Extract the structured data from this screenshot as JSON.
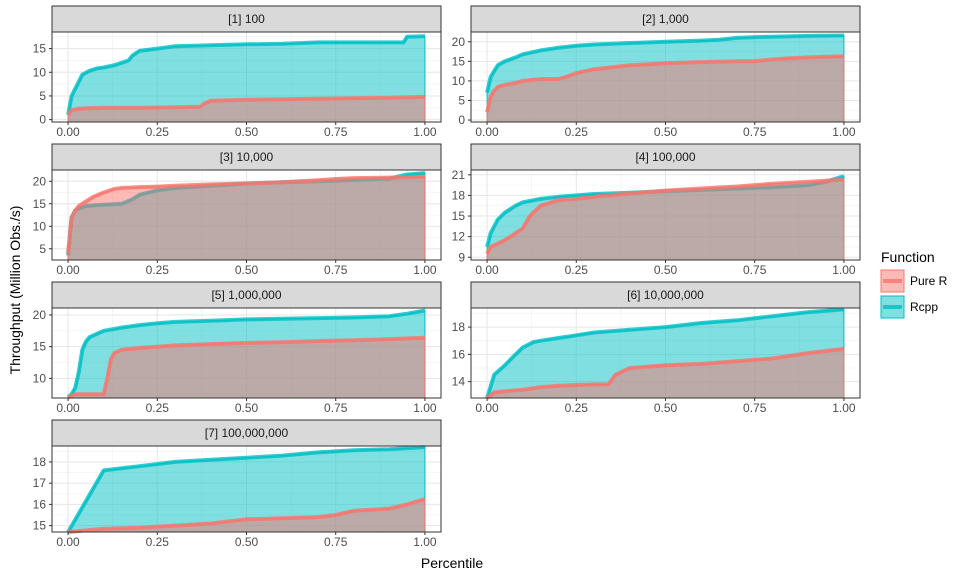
{
  "chart_data": {
    "type": "area",
    "xlabel": "Percentile",
    "ylabel": "Throughput (Million Obs./s)",
    "x_ticks": [
      "0.00",
      "0.25",
      "0.50",
      "0.75",
      "1.00"
    ],
    "grid": true,
    "legend": {
      "title": "Function",
      "position": "right",
      "entries": [
        {
          "name": "Pure R",
          "color": "#F8766D"
        },
        {
          "name": "Rcpp",
          "color": "#00BFC4"
        }
      ]
    },
    "panels": [
      {
        "title": "[1] 100",
        "ylim": [
          -0.5,
          18.5
        ],
        "y_ticks": [
          "0",
          "5",
          "10",
          "15"
        ],
        "series": [
          {
            "name": "Pure R",
            "x": [
              0,
              0.01,
              0.03,
              0.05,
              0.1,
              0.2,
              0.3,
              0.37,
              0.38,
              0.4,
              0.5,
              0.6,
              0.7,
              0.8,
              0.9,
              1.0
            ],
            "y": [
              1.0,
              2.0,
              2.3,
              2.4,
              2.5,
              2.5,
              2.6,
              2.7,
              3.3,
              4.0,
              4.2,
              4.3,
              4.4,
              4.5,
              4.6,
              4.8
            ]
          },
          {
            "name": "Rcpp",
            "x": [
              0,
              0.01,
              0.02,
              0.03,
              0.04,
              0.06,
              0.08,
              0.1,
              0.13,
              0.15,
              0.17,
              0.18,
              0.2,
              0.25,
              0.3,
              0.4,
              0.5,
              0.6,
              0.7,
              0.8,
              0.9,
              0.94,
              0.95,
              1.0
            ],
            "y": [
              1.0,
              5.0,
              6.5,
              8.0,
              9.5,
              10.3,
              10.8,
              11.0,
              11.5,
              12.0,
              12.5,
              13.5,
              14.5,
              15.0,
              15.5,
              15.7,
              15.9,
              16.0,
              16.3,
              16.3,
              16.3,
              16.3,
              17.5,
              17.6
            ]
          }
        ]
      },
      {
        "title": "[2] 1,000",
        "ylim": [
          -0.5,
          22.5
        ],
        "y_ticks": [
          "0",
          "5",
          "10",
          "15",
          "20"
        ],
        "series": [
          {
            "name": "Pure R",
            "x": [
              0,
              0.01,
              0.02,
              0.03,
              0.05,
              0.08,
              0.1,
              0.15,
              0.2,
              0.22,
              0.25,
              0.3,
              0.4,
              0.5,
              0.6,
              0.7,
              0.75,
              0.8,
              0.85,
              0.9,
              0.95,
              1.0
            ],
            "y": [
              2.0,
              6.0,
              7.5,
              8.5,
              9.0,
              9.5,
              10.0,
              10.5,
              10.5,
              11.0,
              12.0,
              13.0,
              14.0,
              14.5,
              14.8,
              15.0,
              15.0,
              15.5,
              15.8,
              16.0,
              16.2,
              16.3
            ]
          },
          {
            "name": "Rcpp",
            "x": [
              0,
              0.01,
              0.02,
              0.03,
              0.05,
              0.08,
              0.1,
              0.15,
              0.2,
              0.25,
              0.3,
              0.4,
              0.5,
              0.6,
              0.65,
              0.7,
              0.75,
              0.8,
              0.9,
              1.0
            ],
            "y": [
              7.0,
              11.0,
              12.5,
              14.0,
              15.0,
              16.0,
              16.8,
              17.8,
              18.5,
              19.0,
              19.3,
              19.7,
              20.0,
              20.3,
              20.5,
              21.0,
              21.2,
              21.3,
              21.5,
              21.6
            ]
          }
        ]
      },
      {
        "title": "[3] 10,000",
        "ylim": [
          2.5,
          22.5
        ],
        "y_ticks": [
          "5",
          "10",
          "15",
          "20"
        ],
        "series": [
          {
            "name": "Pure R",
            "x": [
              0,
              0.01,
              0.02,
              0.03,
              0.05,
              0.07,
              0.1,
              0.13,
              0.15,
              0.2,
              0.25,
              0.3,
              0.4,
              0.5,
              0.6,
              0.7,
              0.75,
              0.8,
              0.9,
              1.0
            ],
            "y": [
              4.0,
              12.0,
              13.5,
              14.5,
              15.5,
              16.5,
              17.5,
              18.3,
              18.5,
              18.7,
              18.8,
              19.0,
              19.3,
              19.5,
              19.8,
              20.2,
              20.5,
              20.7,
              20.8,
              21.0
            ]
          },
          {
            "name": "Rcpp",
            "x": [
              0,
              0.01,
              0.02,
              0.03,
              0.05,
              0.08,
              0.1,
              0.15,
              0.18,
              0.2,
              0.25,
              0.3,
              0.4,
              0.5,
              0.6,
              0.7,
              0.8,
              0.9,
              0.95,
              1.0
            ],
            "y": [
              3.5,
              12.0,
              13.5,
              14.0,
              14.5,
              14.7,
              14.8,
              15.0,
              16.0,
              17.0,
              18.0,
              18.5,
              19.0,
              19.5,
              19.8,
              20.0,
              20.3,
              20.6,
              21.5,
              21.8
            ]
          }
        ]
      },
      {
        "title": "[4] 100,000",
        "ylim": [
          8.6,
          21.7
        ],
        "y_ticks": [
          "9",
          "12",
          "15",
          "18",
          "21"
        ],
        "series": [
          {
            "name": "Pure R",
            "x": [
              0,
              0.01,
              0.03,
              0.05,
              0.08,
              0.1,
              0.12,
              0.15,
              0.18,
              0.2,
              0.25,
              0.3,
              0.4,
              0.5,
              0.6,
              0.7,
              0.8,
              0.9,
              1.0
            ],
            "y": [
              9.5,
              10.5,
              11.0,
              11.5,
              12.5,
              13.2,
              15.0,
              16.5,
              17.0,
              17.3,
              17.5,
              17.8,
              18.3,
              18.7,
              19.0,
              19.3,
              19.7,
              20.0,
              20.3
            ]
          },
          {
            "name": "Rcpp",
            "x": [
              0,
              0.01,
              0.02,
              0.03,
              0.05,
              0.08,
              0.1,
              0.15,
              0.2,
              0.25,
              0.3,
              0.4,
              0.5,
              0.6,
              0.7,
              0.8,
              0.9,
              0.95,
              1.0
            ],
            "y": [
              10.5,
              12.5,
              13.5,
              14.5,
              15.5,
              16.5,
              17.0,
              17.5,
              17.8,
              18.0,
              18.2,
              18.4,
              18.6,
              18.8,
              19.0,
              19.2,
              19.5,
              20.0,
              20.8
            ]
          }
        ]
      },
      {
        "title": "[5] 1,000,000",
        "ylim": [
          6.9,
          21.1
        ],
        "y_ticks": [
          "10",
          "15",
          "20"
        ],
        "series": [
          {
            "name": "Pure R",
            "x": [
              0,
              0.02,
              0.1,
              0.11,
              0.12,
              0.13,
              0.15,
              0.2,
              0.25,
              0.3,
              0.4,
              0.5,
              0.6,
              0.7,
              0.8,
              0.9,
              1.0
            ],
            "y": [
              7.0,
              7.5,
              7.5,
              10.0,
              13.0,
              14.0,
              14.5,
              14.8,
              15.0,
              15.2,
              15.4,
              15.6,
              15.7,
              15.9,
              16.0,
              16.2,
              16.4
            ]
          },
          {
            "name": "Rcpp",
            "x": [
              0,
              0.01,
              0.02,
              0.03,
              0.04,
              0.05,
              0.06,
              0.08,
              0.1,
              0.15,
              0.2,
              0.25,
              0.3,
              0.4,
              0.5,
              0.6,
              0.7,
              0.8,
              0.9,
              0.95,
              1.0
            ],
            "y": [
              7.0,
              7.5,
              8.5,
              11.0,
              14.5,
              15.8,
              16.5,
              17.0,
              17.5,
              18.0,
              18.4,
              18.7,
              18.9,
              19.1,
              19.3,
              19.4,
              19.5,
              19.6,
              19.8,
              20.2,
              20.7
            ]
          }
        ]
      },
      {
        "title": "[6] 10,000,000",
        "ylim": [
          12.8,
          19.4
        ],
        "y_ticks": [
          "14",
          "16",
          "18"
        ],
        "series": [
          {
            "name": "Pure R",
            "x": [
              0,
              0.02,
              0.05,
              0.1,
              0.15,
              0.2,
              0.25,
              0.3,
              0.34,
              0.36,
              0.4,
              0.5,
              0.6,
              0.7,
              0.8,
              0.9,
              1.0
            ],
            "y": [
              12.8,
              13.2,
              13.3,
              13.4,
              13.6,
              13.7,
              13.75,
              13.8,
              13.8,
              14.5,
              15.0,
              15.2,
              15.3,
              15.5,
              15.7,
              16.1,
              16.4
            ]
          },
          {
            "name": "Rcpp",
            "x": [
              0,
              0.02,
              0.05,
              0.08,
              0.1,
              0.13,
              0.15,
              0.2,
              0.25,
              0.3,
              0.4,
              0.5,
              0.6,
              0.7,
              0.8,
              0.9,
              1.0
            ],
            "y": [
              12.8,
              14.5,
              15.2,
              16.0,
              16.5,
              16.9,
              17.0,
              17.2,
              17.4,
              17.6,
              17.8,
              18.0,
              18.3,
              18.5,
              18.8,
              19.1,
              19.3
            ]
          }
        ]
      },
      {
        "title": "[7] 100,000,000",
        "ylim": [
          14.7,
          18.75
        ],
        "y_ticks": [
          "15",
          "16",
          "17",
          "18"
        ],
        "series": [
          {
            "name": "Pure R",
            "x": [
              0,
              0.1,
              0.2,
              0.3,
              0.4,
              0.5,
              0.6,
              0.7,
              0.75,
              0.8,
              0.85,
              0.9,
              0.95,
              1.0
            ],
            "y": [
              14.7,
              14.85,
              14.9,
              15.0,
              15.1,
              15.3,
              15.35,
              15.4,
              15.5,
              15.7,
              15.75,
              15.8,
              16.0,
              16.25
            ]
          },
          {
            "name": "Rcpp",
            "x": [
              0,
              0.1,
              0.2,
              0.3,
              0.4,
              0.5,
              0.6,
              0.7,
              0.8,
              0.9,
              1.0
            ],
            "y": [
              14.7,
              17.6,
              17.8,
              18.0,
              18.1,
              18.2,
              18.3,
              18.45,
              18.55,
              18.6,
              18.7
            ]
          }
        ]
      }
    ]
  }
}
